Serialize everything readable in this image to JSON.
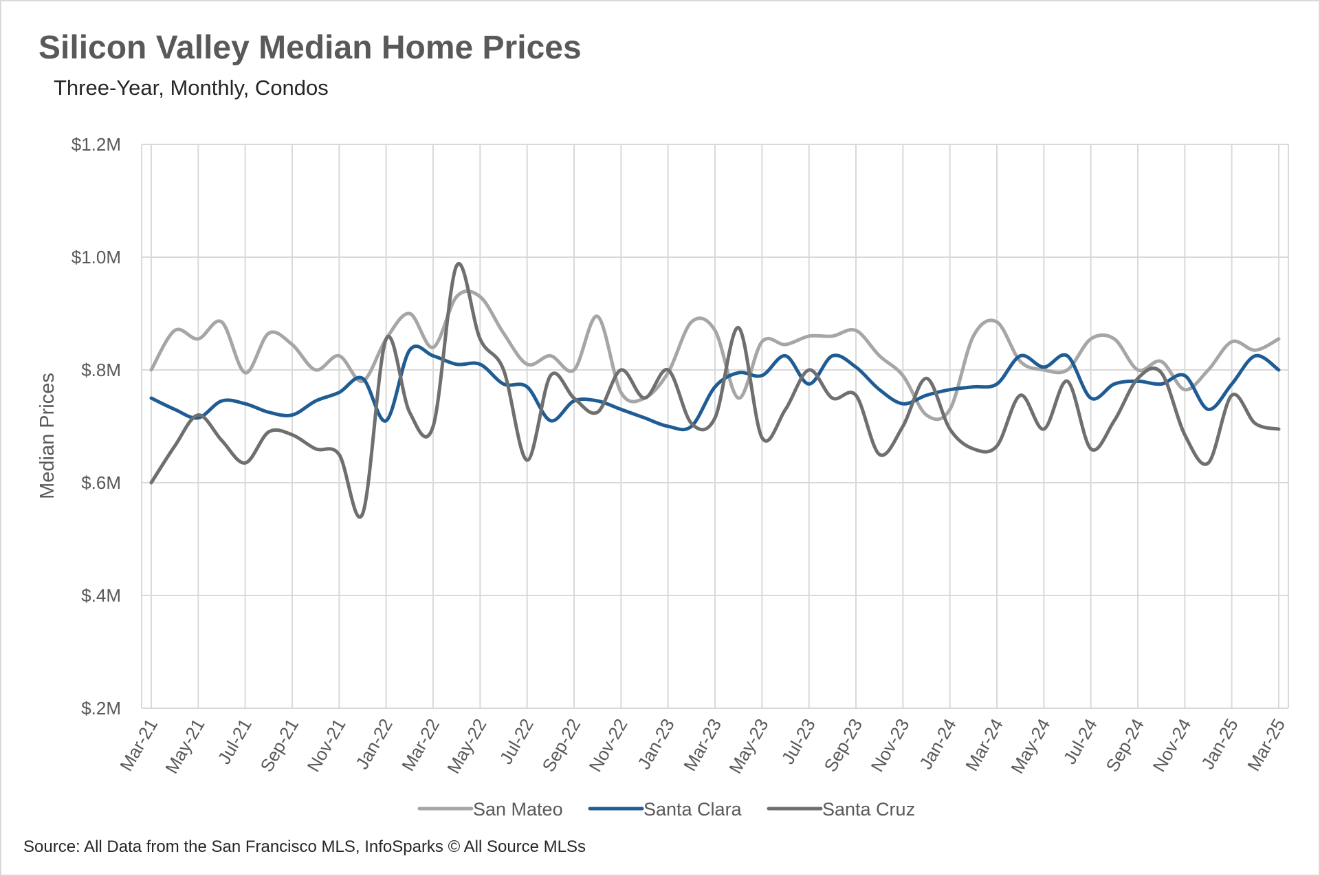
{
  "title": "Silicon Valley Median Home Prices",
  "subtitle": "Three-Year, Monthly, Condos",
  "source": "Source: All Data from the San Francisco MLS, InfoSparks © All Source MLSs",
  "chart_data": {
    "type": "line",
    "ylabel": "Median Prices",
    "ylim": [
      0.2,
      1.2
    ],
    "yticks": [
      0.2,
      0.4,
      0.6,
      0.8,
      1.0,
      1.2
    ],
    "ytick_labels": [
      "$.2M",
      "$.4M",
      "$.6M",
      "$.8M",
      "$1.0M",
      "$1.2M"
    ],
    "x": [
      "Mar-21",
      "Apr-21",
      "May-21",
      "Jun-21",
      "Jul-21",
      "Aug-21",
      "Sep-21",
      "Oct-21",
      "Nov-21",
      "Dec-21",
      "Jan-22",
      "Feb-22",
      "Mar-22",
      "Apr-22",
      "May-22",
      "Jun-22",
      "Jul-22",
      "Aug-22",
      "Sep-22",
      "Oct-22",
      "Nov-22",
      "Dec-22",
      "Jan-23",
      "Feb-23",
      "Mar-23",
      "Apr-23",
      "May-23",
      "Jun-23",
      "Jul-23",
      "Aug-23",
      "Sep-23",
      "Oct-23",
      "Nov-23",
      "Dec-23",
      "Jan-24",
      "Feb-24",
      "Mar-24",
      "Apr-24",
      "May-24",
      "Jun-24",
      "Jul-24",
      "Aug-24",
      "Sep-24",
      "Oct-24",
      "Nov-24",
      "Dec-24",
      "Jan-25",
      "Feb-25",
      "Mar-25"
    ],
    "x_tick_labels": [
      "Mar-21",
      "May-21",
      "Jul-21",
      "Sep-21",
      "Nov-21",
      "Jan-22",
      "Mar-22",
      "May-22",
      "Jul-22",
      "Sep-22",
      "Nov-22",
      "Jan-23",
      "Mar-23",
      "May-23",
      "Jul-23",
      "Sep-23",
      "Nov-23",
      "Jan-24",
      "Mar-24",
      "May-24",
      "Jul-24",
      "Sep-24",
      "Nov-24",
      "Jan-25",
      "Mar-25"
    ],
    "grid": true,
    "legend_position": "bottom",
    "series": [
      {
        "name": "San Mateo",
        "color": "#a6a6a6",
        "values": [
          0.8,
          0.87,
          0.855,
          0.885,
          0.795,
          0.865,
          0.845,
          0.8,
          0.825,
          0.78,
          0.855,
          0.9,
          0.84,
          0.93,
          0.93,
          0.865,
          0.81,
          0.825,
          0.8,
          0.895,
          0.76,
          0.75,
          0.795,
          0.885,
          0.87,
          0.75,
          0.85,
          0.845,
          0.86,
          0.86,
          0.87,
          0.825,
          0.79,
          0.72,
          0.73,
          0.86,
          0.885,
          0.815,
          0.8,
          0.8,
          0.855,
          0.855,
          0.8,
          0.815,
          0.765,
          0.8,
          0.85,
          0.835,
          0.855
        ]
      },
      {
        "name": "Santa Clara",
        "color": "#1f5c94",
        "values": [
          0.75,
          0.73,
          0.715,
          0.745,
          0.74,
          0.725,
          0.72,
          0.745,
          0.76,
          0.785,
          0.71,
          0.835,
          0.825,
          0.81,
          0.81,
          0.775,
          0.77,
          0.71,
          0.745,
          0.745,
          0.73,
          0.715,
          0.7,
          0.7,
          0.77,
          0.795,
          0.79,
          0.825,
          0.775,
          0.825,
          0.805,
          0.765,
          0.74,
          0.755,
          0.765,
          0.77,
          0.775,
          0.825,
          0.805,
          0.825,
          0.75,
          0.775,
          0.78,
          0.775,
          0.79,
          0.73,
          0.775,
          0.825,
          0.8
        ]
      },
      {
        "name": "Santa Cruz",
        "color": "#6f6f6f",
        "values": [
          0.6,
          0.665,
          0.72,
          0.675,
          0.635,
          0.69,
          0.685,
          0.66,
          0.65,
          0.545,
          0.855,
          0.725,
          0.7,
          0.985,
          0.855,
          0.8,
          0.64,
          0.79,
          0.75,
          0.725,
          0.8,
          0.75,
          0.8,
          0.705,
          0.715,
          0.875,
          0.68,
          0.73,
          0.8,
          0.75,
          0.755,
          0.65,
          0.7,
          0.785,
          0.695,
          0.66,
          0.665,
          0.755,
          0.695,
          0.78,
          0.66,
          0.71,
          0.785,
          0.795,
          0.685,
          0.635,
          0.755,
          0.705,
          0.695
        ]
      }
    ]
  }
}
